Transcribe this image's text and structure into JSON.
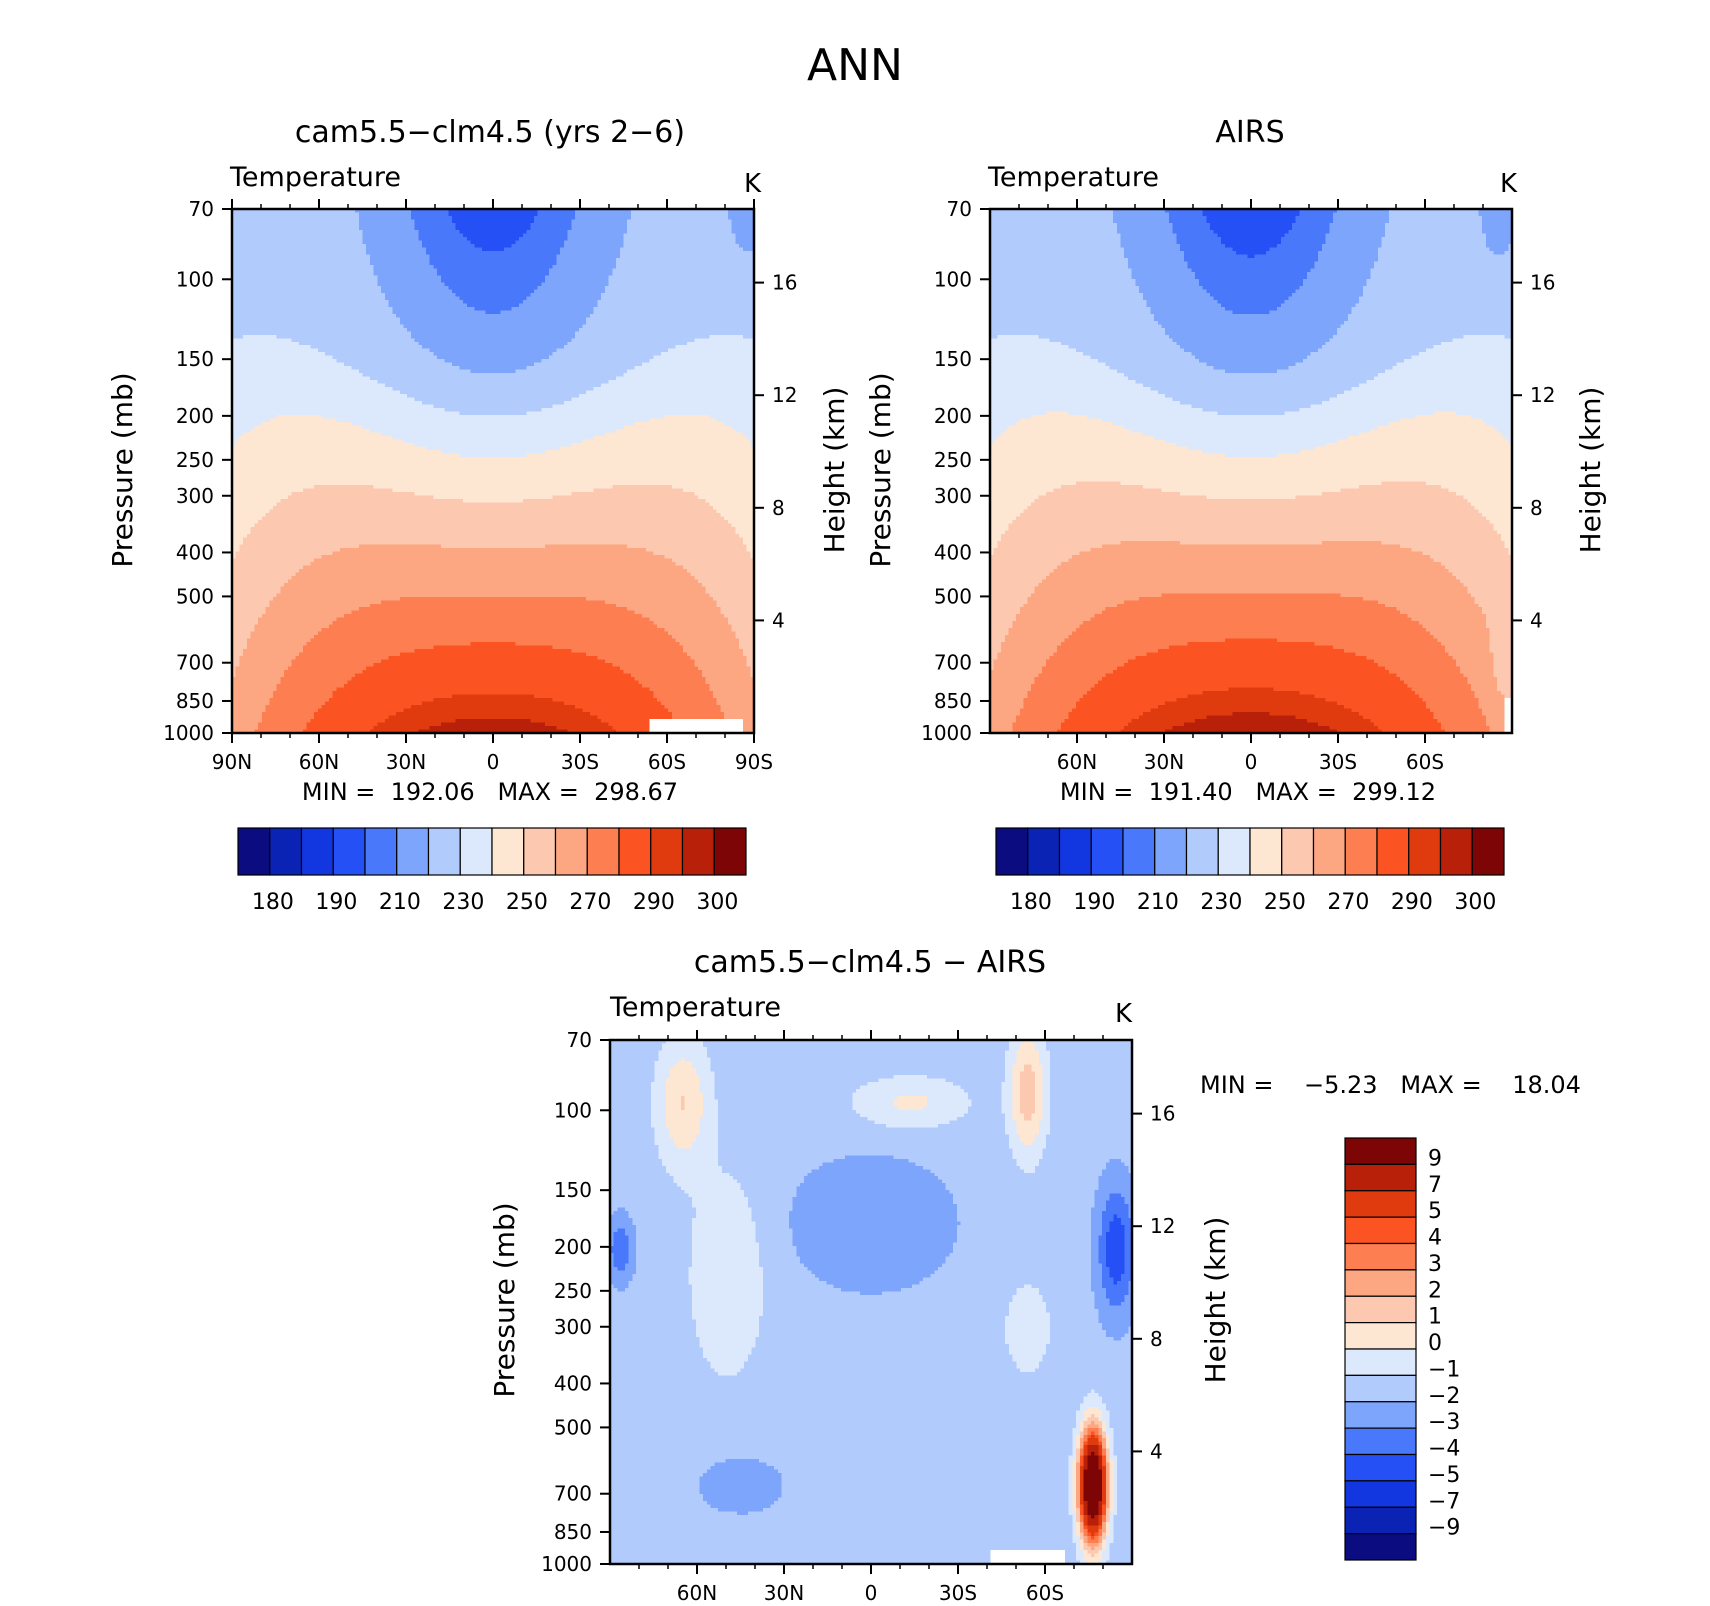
{
  "figure_title": "ANN",
  "chart_data": [
    {
      "id": "model",
      "type": "heatmap",
      "title": "cam5.5−clm4.5 (yrs 2−6)",
      "variable": "Temperature",
      "units": "K",
      "ylabel": "Pressure (mb)",
      "ylabel_right": "Height (km)",
      "y_ticks": [
        "70",
        "100",
        "150",
        "200",
        "250",
        "300",
        "400",
        "500",
        "700",
        "850",
        "1000"
      ],
      "y_right_ticks": [
        "16",
        "12",
        "8",
        "4"
      ],
      "x_ticks": [
        "90N",
        "60N",
        "30N",
        "0",
        "30S",
        "60S",
        "90S"
      ],
      "min_max_text": "MIN =  192.06   MAX =  298.67",
      "min": 192.06,
      "max": 298.67,
      "colorbar_labels": [
        "180",
        "190",
        "210",
        "230",
        "250",
        "270",
        "290",
        "300"
      ],
      "colors": [
        "#0a0c7f",
        "#0b23b4",
        "#1237e0",
        "#2450f5",
        "#4a78fb",
        "#7ea5fc",
        "#b2cbfd",
        "#dce9fd",
        "#fde7d3",
        "#fcc8b0",
        "#fca682",
        "#fd7f51",
        "#fb5422",
        "#e03b0e",
        "#b8200a",
        "#7e0505"
      ]
    },
    {
      "id": "obs",
      "type": "heatmap",
      "title": "AIRS",
      "variable": "Temperature",
      "units": "K",
      "ylabel": "Pressure (mb)",
      "ylabel_right": "Height (km)",
      "y_ticks": [
        "70",
        "100",
        "150",
        "200",
        "250",
        "300",
        "400",
        "500",
        "700",
        "850",
        "1000"
      ],
      "y_right_ticks": [
        "16",
        "12",
        "8",
        "4"
      ],
      "x_ticks": [
        "60N",
        "30N",
        "0",
        "30S",
        "60S"
      ],
      "min_max_text": "MIN =  191.40   MAX =  299.12",
      "min": 191.4,
      "max": 299.12,
      "colorbar_labels": [
        "180",
        "190",
        "210",
        "230",
        "250",
        "270",
        "290",
        "300"
      ],
      "colors": [
        "#0a0c7f",
        "#0b23b4",
        "#1237e0",
        "#2450f5",
        "#4a78fb",
        "#7ea5fc",
        "#b2cbfd",
        "#dce9fd",
        "#fde7d3",
        "#fcc8b0",
        "#fca682",
        "#fd7f51",
        "#fb5422",
        "#e03b0e",
        "#b8200a",
        "#7e0505"
      ]
    },
    {
      "id": "diff",
      "type": "heatmap",
      "title": "cam5.5−clm4.5 − AIRS",
      "variable": "Temperature",
      "units": "K",
      "ylabel": "Pressure (mb)",
      "ylabel_right": "Height (km)",
      "y_ticks": [
        "70",
        "100",
        "150",
        "200",
        "250",
        "300",
        "400",
        "500",
        "700",
        "850",
        "1000"
      ],
      "y_right_ticks": [
        "16",
        "12",
        "8",
        "4"
      ],
      "x_ticks": [
        "60N",
        "30N",
        "0",
        "30S",
        "60S"
      ],
      "min_max_text": "MIN =    −5.23   MAX =    18.04",
      "min": -5.23,
      "max": 18.04,
      "colorbar_labels": [
        "9",
        "7",
        "5",
        "4",
        "3",
        "2",
        "1",
        "0",
        "−1",
        "−2",
        "−3",
        "−4",
        "−5",
        "−7",
        "−9"
      ],
      "colors": [
        "#0a0c7f",
        "#0b23b4",
        "#1237e0",
        "#2450f5",
        "#4a78fb",
        "#7ea5fc",
        "#b2cbfd",
        "#dce9fd",
        "#fde7d3",
        "#fcc8b0",
        "#fca682",
        "#fd7f51",
        "#fb5422",
        "#e03b0e",
        "#b8200a",
        "#7e0505"
      ]
    }
  ]
}
